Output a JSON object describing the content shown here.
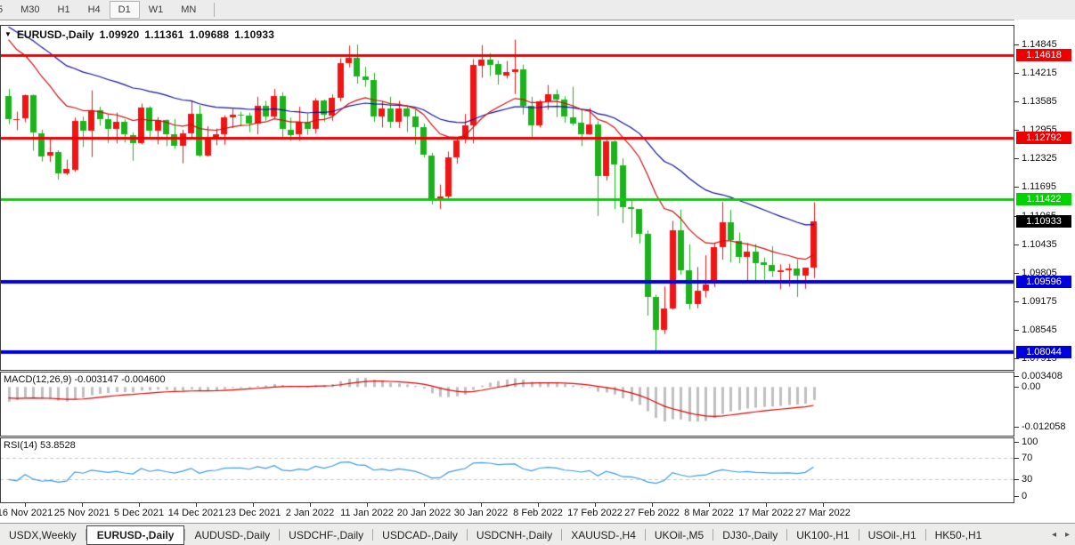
{
  "toolbar": {
    "timeframes": [
      {
        "label": "5",
        "active": false
      },
      {
        "label": "M30",
        "active": false
      },
      {
        "label": "H1",
        "active": false
      },
      {
        "label": "H4",
        "active": false
      },
      {
        "label": "D1",
        "active": true
      },
      {
        "label": "W1",
        "active": false
      },
      {
        "label": "MN",
        "active": false
      }
    ]
  },
  "chart": {
    "title": {
      "symbol": "EURUSD-,Daily",
      "open": "1.09920",
      "high": "1.11361",
      "low": "1.09688",
      "close": "1.10933"
    },
    "price_axis": {
      "ticks": [
        "1.14845",
        "1.14215",
        "1.13585",
        "1.12955",
        "1.12325",
        "1.11695",
        "1.11065",
        "1.10435",
        "1.09805",
        "1.09175",
        "1.08545",
        "1.07915"
      ],
      "current_price": {
        "value": "1.10933",
        "bg": "#000000"
      }
    },
    "hlines": [
      {
        "value": "1.14618",
        "color": "#ee0000",
        "width": 3
      },
      {
        "value": "1.12792",
        "color": "#ee0000",
        "width": 3
      },
      {
        "value": "1.11422",
        "color": "#00d300",
        "width": 3
      },
      {
        "value": "1.09596",
        "color": "#0000dd",
        "width": 4
      },
      {
        "value": "1.08044",
        "color": "#0000dd",
        "width": 4
      }
    ],
    "date_axis": [
      "16 Nov 2021",
      "25 Nov 2021",
      "5 Dec 2021",
      "14 Dec 2021",
      "23 Dec 2021",
      "2 Jan 2022",
      "11 Jan 2022",
      "20 Jan 2022",
      "30 Jan 2022",
      "8 Feb 2022",
      "17 Feb 2022",
      "27 Feb 2022",
      "8 Mar 2022",
      "17 Mar 2022",
      "27 Mar 2022"
    ]
  },
  "macd": {
    "name": "MACD(12,26,9)",
    "value": "-0.003147",
    "signal": "-0.004600",
    "axis_ticks": [
      "0.003408",
      "0.00",
      "-0.012058"
    ]
  },
  "rsi": {
    "name": "RSI(14)",
    "value": "53.8528",
    "axis_ticks": [
      "100",
      "70",
      "30",
      "0"
    ]
  },
  "tabs": {
    "items": [
      {
        "label": "USDX,Weekly",
        "active": false
      },
      {
        "label": "EURUSD-,Daily",
        "active": true
      },
      {
        "label": "AUDUSD-,Daily",
        "active": false
      },
      {
        "label": "USDCHF-,Daily",
        "active": false
      },
      {
        "label": "USDCAD-,Daily",
        "active": false
      },
      {
        "label": "USDCNH-,Daily",
        "active": false
      },
      {
        "label": "XAUUSD-,H4",
        "active": false
      },
      {
        "label": "UKOil-,M5",
        "active": false
      },
      {
        "label": "DJ30-,Daily",
        "active": false
      },
      {
        "label": "UK100-,H1",
        "active": false
      },
      {
        "label": "USOil-,H1",
        "active": false
      },
      {
        "label": "HK50-,H1",
        "active": false
      }
    ],
    "scroll_left_icon": "◂",
    "scroll_right_icon": "▸"
  },
  "colors": {
    "bull": "#f01414",
    "bear": "#1db21d",
    "ma_fast": "#cc1111",
    "ma_slow": "#101099",
    "macd_hist": "#bfbfbf",
    "macd_signal": "#dd0000",
    "rsi_line": "#3d9ae8",
    "rsi_levels": "#c9c9c9",
    "axis_text": "#111111"
  },
  "chart_data": {
    "type": "candlestick",
    "symbol": "EURUSD-",
    "timeframe": "Daily",
    "title": "EURUSD-,Daily  1.09920 1.11361 1.09688 1.10933",
    "x_axis_labels": [
      "16 Nov 2021",
      "25 Nov 2021",
      "5 Dec 2021",
      "14 Dec 2021",
      "23 Dec 2021",
      "2 Jan 2022",
      "11 Jan 2022",
      "20 Jan 2022",
      "30 Jan 2022",
      "8 Feb 2022",
      "17 Feb 2022",
      "27 Feb 2022",
      "8 Mar 2022",
      "17 Mar 2022",
      "27 Mar 2022"
    ],
    "y_axis_range": [
      1.0766,
      1.15277
    ],
    "grid": false,
    "horizontal_lines": [
      1.14618,
      1.12792,
      1.11422,
      1.09596,
      1.08044
    ],
    "last_candle": {
      "open": 1.0992,
      "high": 1.11361,
      "low": 1.09688,
      "close": 1.10933
    },
    "indicators": [
      {
        "name": "MACD",
        "params": [
          12,
          26,
          9
        ],
        "main_value": -0.003147,
        "signal_value": -0.0046,
        "axis": [
          0.003408,
          0.0,
          -0.012058
        ]
      },
      {
        "name": "RSI",
        "params": [
          14
        ],
        "value": 53.8528,
        "levels": [
          70,
          30
        ],
        "axis": [
          100,
          70,
          30,
          0
        ]
      }
    ],
    "ohlc": [
      [
        1.137,
        1.1386,
        1.1309,
        1.1319
      ],
      [
        1.1319,
        1.1336,
        1.1295,
        1.132
      ],
      [
        1.132,
        1.1374,
        1.1313,
        1.1372
      ],
      [
        1.1372,
        1.1374,
        1.125,
        1.1289
      ],
      [
        1.1289,
        1.1296,
        1.1226,
        1.1238
      ],
      [
        1.1238,
        1.1275,
        1.1225,
        1.1246
      ],
      [
        1.1246,
        1.1251,
        1.1186,
        1.1199
      ],
      [
        1.1199,
        1.123,
        1.1196,
        1.1209
      ],
      [
        1.1209,
        1.1323,
        1.1203,
        1.1316
      ],
      [
        1.1316,
        1.1325,
        1.1258,
        1.1294
      ],
      [
        1.1294,
        1.1383,
        1.1236,
        1.1339
      ],
      [
        1.1339,
        1.1347,
        1.1305,
        1.1319
      ],
      [
        1.1319,
        1.133,
        1.1267,
        1.1298
      ],
      [
        1.1298,
        1.1334,
        1.1266,
        1.1313
      ],
      [
        1.1313,
        1.1319,
        1.1268,
        1.1285
      ],
      [
        1.1285,
        1.129,
        1.1228,
        1.1267
      ],
      [
        1.1267,
        1.1354,
        1.1264,
        1.1345
      ],
      [
        1.1345,
        1.1348,
        1.128,
        1.1294
      ],
      [
        1.1294,
        1.1324,
        1.1264,
        1.1317
      ],
      [
        1.1317,
        1.1319,
        1.126,
        1.1286
      ],
      [
        1.1286,
        1.132,
        1.1254,
        1.126
      ],
      [
        1.126,
        1.1296,
        1.1222,
        1.1288
      ],
      [
        1.1288,
        1.136,
        1.128,
        1.1331
      ],
      [
        1.1331,
        1.135,
        1.1236,
        1.1239
      ],
      [
        1.1239,
        1.1304,
        1.1237,
        1.1278
      ],
      [
        1.1278,
        1.1299,
        1.1262,
        1.1287
      ],
      [
        1.1287,
        1.1328,
        1.1263,
        1.1324
      ],
      [
        1.1324,
        1.1342,
        1.13,
        1.133
      ],
      [
        1.133,
        1.1336,
        1.1304,
        1.1328
      ],
      [
        1.1328,
        1.1334,
        1.1291,
        1.131
      ],
      [
        1.131,
        1.1369,
        1.1286,
        1.1349
      ],
      [
        1.1349,
        1.136,
        1.1316,
        1.1325
      ],
      [
        1.1325,
        1.1386,
        1.1321,
        1.137
      ],
      [
        1.137,
        1.1379,
        1.1279,
        1.1297
      ],
      [
        1.1297,
        1.1323,
        1.1272,
        1.1285
      ],
      [
        1.1285,
        1.1347,
        1.1272,
        1.1313
      ],
      [
        1.1313,
        1.1332,
        1.1285,
        1.1297
      ],
      [
        1.1297,
        1.1366,
        1.1288,
        1.136
      ],
      [
        1.136,
        1.1363,
        1.1314,
        1.1328
      ],
      [
        1.1328,
        1.1374,
        1.1315,
        1.1367
      ],
      [
        1.1367,
        1.1454,
        1.1359,
        1.1444
      ],
      [
        1.1444,
        1.1482,
        1.1434,
        1.1455
      ],
      [
        1.1455,
        1.1484,
        1.1398,
        1.1413
      ],
      [
        1.1413,
        1.1435,
        1.1391,
        1.1406
      ],
      [
        1.1406,
        1.1422,
        1.1314,
        1.1325
      ],
      [
        1.1325,
        1.1359,
        1.1301,
        1.1343
      ],
      [
        1.1343,
        1.1369,
        1.13,
        1.1313
      ],
      [
        1.1313,
        1.136,
        1.13,
        1.1343
      ],
      [
        1.1343,
        1.1349,
        1.1291,
        1.1325
      ],
      [
        1.1325,
        1.134,
        1.1264,
        1.1301
      ],
      [
        1.1301,
        1.131,
        1.1235,
        1.124
      ],
      [
        1.124,
        1.1245,
        1.1131,
        1.1145
      ],
      [
        1.1145,
        1.1175,
        1.1121,
        1.1148
      ],
      [
        1.1148,
        1.1248,
        1.114,
        1.1235
      ],
      [
        1.1235,
        1.1279,
        1.1221,
        1.1273
      ],
      [
        1.1273,
        1.1331,
        1.1266,
        1.1305
      ],
      [
        1.1305,
        1.1452,
        1.1266,
        1.1439
      ],
      [
        1.1439,
        1.1483,
        1.1411,
        1.1452
      ],
      [
        1.1452,
        1.1465,
        1.1415,
        1.1441
      ],
      [
        1.1441,
        1.1449,
        1.1396,
        1.1417
      ],
      [
        1.1417,
        1.1448,
        1.1409,
        1.1424
      ],
      [
        1.1424,
        1.1495,
        1.1375,
        1.143
      ],
      [
        1.143,
        1.144,
        1.133,
        1.1349
      ],
      [
        1.1349,
        1.1369,
        1.1277,
        1.1306
      ],
      [
        1.1306,
        1.1362,
        1.1301,
        1.1359
      ],
      [
        1.1359,
        1.1395,
        1.134,
        1.1374
      ],
      [
        1.1374,
        1.1385,
        1.1324,
        1.1362
      ],
      [
        1.1362,
        1.137,
        1.1312,
        1.1324
      ],
      [
        1.1324,
        1.1391,
        1.1305,
        1.1311
      ],
      [
        1.1311,
        1.1342,
        1.126,
        1.1286
      ],
      [
        1.1286,
        1.1344,
        1.1285,
        1.1308
      ],
      [
        1.1308,
        1.1315,
        1.1106,
        1.1194
      ],
      [
        1.1194,
        1.1274,
        1.1184,
        1.127
      ],
      [
        1.127,
        1.1273,
        1.1121,
        1.1218
      ],
      [
        1.1218,
        1.1233,
        1.109,
        1.1125
      ],
      [
        1.1125,
        1.114,
        1.1058,
        1.1121
      ],
      [
        1.1121,
        1.1121,
        1.1045,
        1.1066
      ],
      [
        1.1066,
        1.1074,
        1.0886,
        1.0926
      ],
      [
        1.0926,
        1.0932,
        1.0806,
        1.0854
      ],
      [
        1.0854,
        1.095,
        1.0845,
        1.0901
      ],
      [
        1.0901,
        1.1095,
        1.0899,
        1.1074
      ],
      [
        1.1074,
        1.112,
        1.0976,
        1.0986
      ],
      [
        1.0986,
        1.1043,
        1.09,
        1.0911
      ],
      [
        1.0911,
        1.0993,
        1.0902,
        1.0941
      ],
      [
        1.0941,
        1.1019,
        1.0926,
        1.0955
      ],
      [
        1.0955,
        1.1047,
        1.0949,
        1.1036
      ],
      [
        1.1036,
        1.1137,
        1.1009,
        1.1091
      ],
      [
        1.1091,
        1.1119,
        1.1003,
        1.1051
      ],
      [
        1.1051,
        1.1069,
        1.1001,
        1.1016
      ],
      [
        1.1016,
        1.1046,
        1.0961,
        1.1028
      ],
      [
        1.1028,
        1.1044,
        1.0963,
        1.1003
      ],
      [
        1.1003,
        1.1014,
        1.0965,
        1.0997
      ],
      [
        1.0997,
        1.1039,
        1.0971,
        1.0983
      ],
      [
        1.0983,
        1.0999,
        1.0944,
        1.0986
      ],
      [
        1.0986,
        1.1,
        1.095,
        1.099
      ],
      [
        1.099,
        1.101,
        1.0927,
        1.0974
      ],
      [
        1.0974,
        1.099,
        1.0945,
        1.0992
      ],
      [
        1.0992,
        1.11361,
        1.09688,
        1.10933
      ]
    ]
  }
}
